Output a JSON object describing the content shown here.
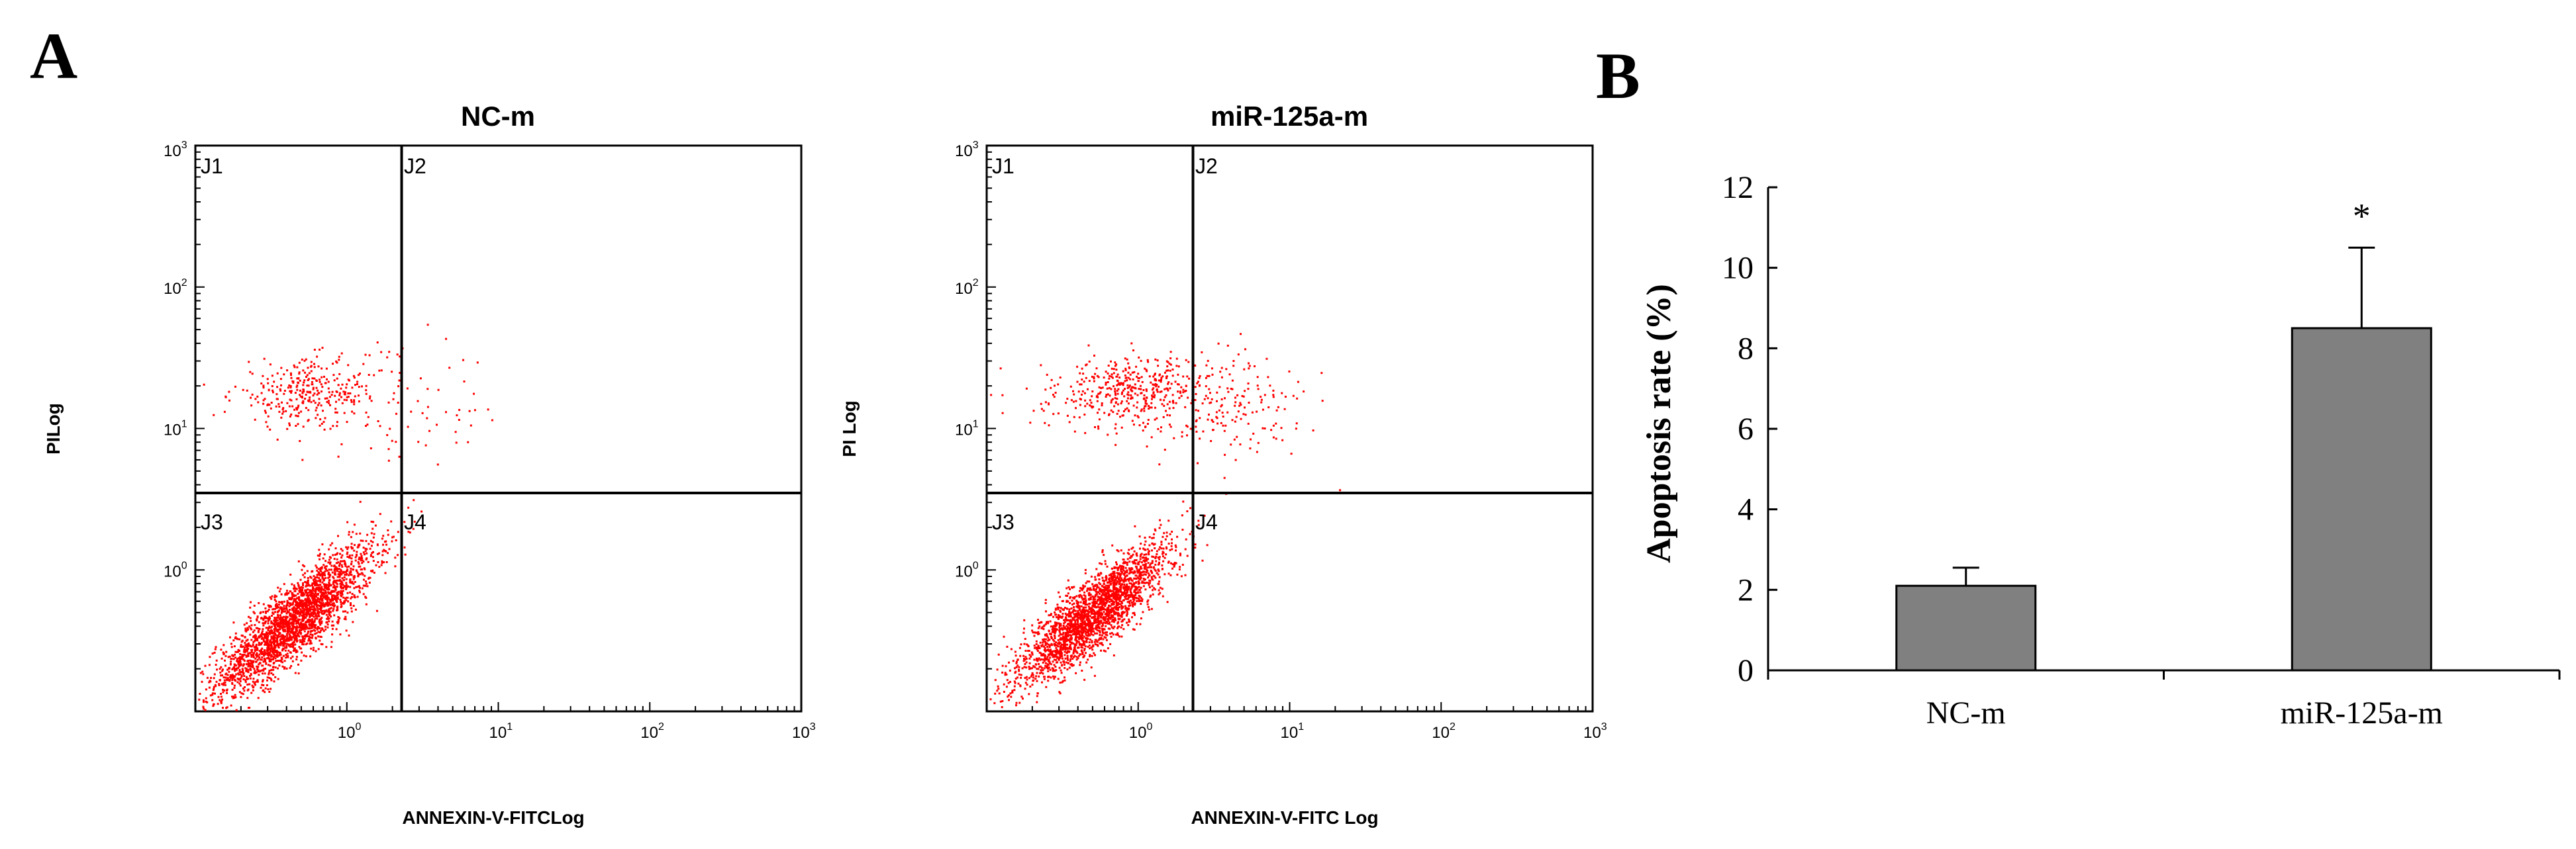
{
  "panels": {
    "a": "A",
    "b": "B"
  },
  "chart_data": [
    {
      "type": "scatter",
      "title": "NC-m",
      "xlabel": "ANNEXIN-V-FITCLog",
      "ylabel": "PILog",
      "xscale": "log",
      "yscale": "log",
      "xlim": [
        0.1,
        1000
      ],
      "ylim": [
        0.1,
        1000
      ],
      "x_ticks": [
        {
          "base": "10",
          "exp": "0"
        },
        {
          "base": "10",
          "exp": "1"
        },
        {
          "base": "10",
          "exp": "2"
        },
        {
          "base": "10",
          "exp": "3"
        }
      ],
      "y_ticks": [
        {
          "base": "10",
          "exp": "0"
        },
        {
          "base": "10",
          "exp": "1"
        },
        {
          "base": "10",
          "exp": "2"
        },
        {
          "base": "10",
          "exp": "3"
        }
      ],
      "gates": {
        "x": 2.3,
        "y": 3.5
      },
      "quadrants": [
        "J1",
        "J2",
        "J3",
        "J4"
      ],
      "point_color": "#ff0000",
      "clusters": [
        {
          "label": "viable",
          "n": 2600,
          "cx": 0.45,
          "cy": 0.45,
          "sx": 0.26,
          "sy": 0.26,
          "rho": 0.85
        },
        {
          "label": "PI-positive",
          "n": 320,
          "cx": 0.55,
          "cy": 18,
          "sx": 0.25,
          "sy": 0.12,
          "rho": 0.1
        },
        {
          "label": "spread",
          "n": 70,
          "cx": 2.5,
          "cy": 14,
          "sx": 0.35,
          "sy": 0.2,
          "rho": 0.0
        }
      ]
    },
    {
      "type": "scatter",
      "title": "miR-125a-m",
      "xlabel": "ANNEXIN-V-FITC Log",
      "ylabel": "PI Log",
      "xscale": "log",
      "yscale": "log",
      "xlim": [
        0.1,
        1000
      ],
      "ylim": [
        0.1,
        1000
      ],
      "x_ticks": [
        {
          "base": "10",
          "exp": "0"
        },
        {
          "base": "10",
          "exp": "1"
        },
        {
          "base": "10",
          "exp": "2"
        },
        {
          "base": "10",
          "exp": "3"
        }
      ],
      "y_ticks": [
        {
          "base": "10",
          "exp": "0"
        },
        {
          "base": "10",
          "exp": "1"
        },
        {
          "base": "10",
          "exp": "2"
        },
        {
          "base": "10",
          "exp": "3"
        }
      ],
      "gates": {
        "x": 2.3,
        "y": 3.5
      },
      "quadrants": [
        "J1",
        "J2",
        "J3",
        "J4"
      ],
      "point_color": "#ff0000",
      "clusters": [
        {
          "label": "viable",
          "n": 2400,
          "cx": 0.5,
          "cy": 0.5,
          "sx": 0.25,
          "sy": 0.25,
          "rho": 0.85
        },
        {
          "label": "PI-positive",
          "n": 420,
          "cx": 0.85,
          "cy": 19,
          "sx": 0.28,
          "sy": 0.12,
          "rho": 0.1
        },
        {
          "label": "spread",
          "n": 180,
          "cx": 3.5,
          "cy": 14,
          "sx": 0.3,
          "sy": 0.2,
          "rho": 0.0
        }
      ]
    },
    {
      "type": "bar",
      "categories": [
        "NC-m",
        "miR-125a-m"
      ],
      "values": [
        2.1,
        8.5
      ],
      "errors": [
        0.45,
        2.0
      ],
      "annotations": [
        "",
        "*"
      ],
      "ylabel": "Apoptosis rate (%)",
      "ylim": [
        0,
        12
      ],
      "yticks": [
        0,
        2,
        4,
        6,
        8,
        10,
        12
      ],
      "bar_color": "#808080"
    }
  ]
}
